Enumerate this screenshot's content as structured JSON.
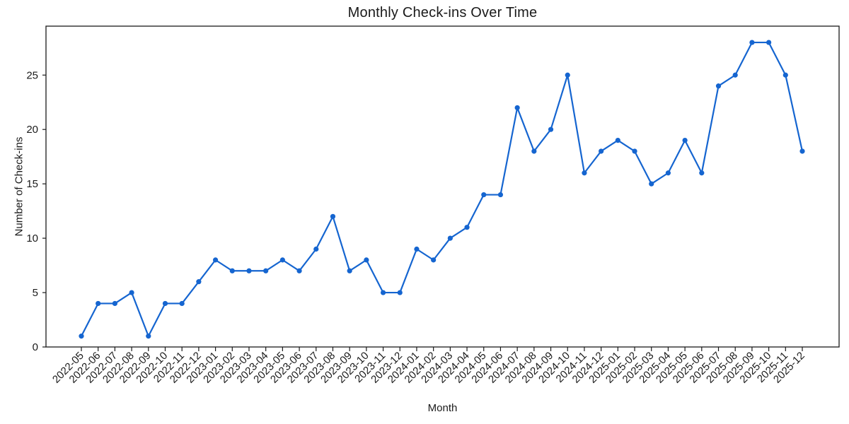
{
  "chart_data": {
    "type": "line",
    "title": "Monthly Check-ins Over Time",
    "xlabel": "Month",
    "ylabel": "Number of Check-ins",
    "categories": [
      "2022-05",
      "2022-06",
      "2022-07",
      "2022-08",
      "2022-09",
      "2022-10",
      "2022-11",
      "2022-12",
      "2023-01",
      "2023-02",
      "2023-03",
      "2023-04",
      "2023-05",
      "2023-06",
      "2023-07",
      "2023-08",
      "2023-09",
      "2023-10",
      "2023-11",
      "2023-12",
      "2024-01",
      "2024-02",
      "2024-03",
      "2024-04",
      "2024-05",
      "2024-06",
      "2024-07",
      "2024-08",
      "2024-09",
      "2024-10",
      "2024-11",
      "2024-12",
      "2025-01",
      "2025-02",
      "2025-03",
      "2025-04",
      "2025-05",
      "2025-06",
      "2025-07",
      "2025-08",
      "2025-09",
      "2025-10",
      "2025-11",
      "2025-12"
    ],
    "values": [
      1,
      4,
      4,
      5,
      1,
      4,
      4,
      6,
      8,
      7,
      7,
      7,
      8,
      7,
      9,
      12,
      7,
      8,
      5,
      5,
      9,
      8,
      10,
      11,
      14,
      14,
      22,
      18,
      20,
      25,
      16,
      18,
      19,
      18,
      15,
      16,
      19,
      16,
      24,
      25,
      28,
      28,
      25,
      18
    ],
    "yticks": [
      0,
      5,
      10,
      15,
      20,
      25
    ],
    "ylim": [
      0,
      29.5
    ],
    "xtick_rotation": 45,
    "grid": false,
    "legend_position": "none",
    "line_color": "#1565d0",
    "marker": "circle",
    "axis_color": "#1a1a1a",
    "text_color": "#1a1a1a",
    "background_color": "#ffffff"
  }
}
